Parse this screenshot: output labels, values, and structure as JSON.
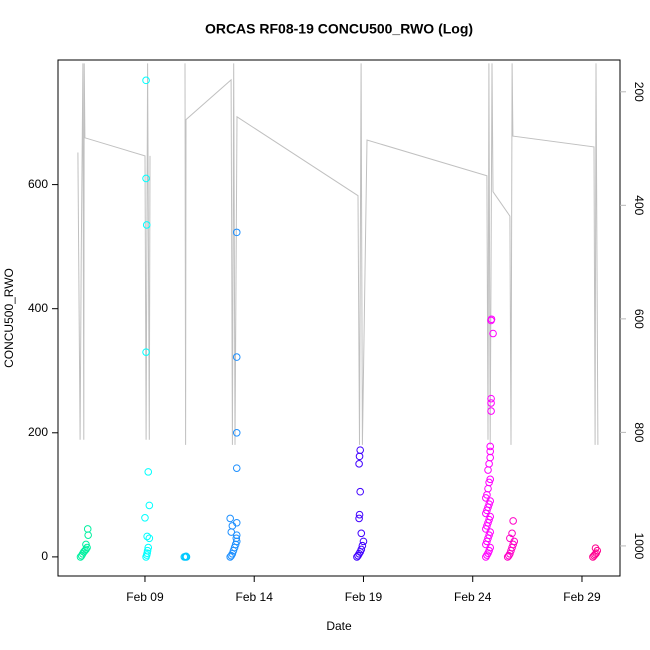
{
  "chart_data": {
    "type": "scatter",
    "title": "ORCAS RF08-19 CONCU500_RWO (Log)",
    "x_label": "Date",
    "y_label": "CONCU500_RWO",
    "xlim": [
      5.02,
      30.74
    ],
    "xticks": [
      {
        "value": 9,
        "label": "Feb 09"
      },
      {
        "value": 14,
        "label": "Feb 14"
      },
      {
        "value": 19,
        "label": "Feb 19"
      },
      {
        "value": 24,
        "label": "Feb 24"
      },
      {
        "value": 29,
        "label": "Feb 29"
      }
    ],
    "ylim": [
      -30.8,
      800.8
    ],
    "yticks": [
      0,
      200,
      400,
      600
    ],
    "y2lim": [
      1053,
      144
    ],
    "y2ticks": [
      200,
      400,
      600,
      800,
      1000
    ],
    "y2_color": "#b8b8b8",
    "series": [
      {
        "mode": "line",
        "axis": "y2",
        "color": "#c0c0c0",
        "x": [
          5.93,
          6.03,
          6.08,
          6.16,
          6.2,
          6.22,
          6.25,
          9.0,
          9.05,
          9.12,
          9.2,
          9.23,
          null,
          10.83,
          10.86,
          10.88,
          12.94,
          13.0,
          13.06,
          13.12,
          13.21,
          18.75,
          18.82,
          18.89,
          18.95,
          19.16,
          24.65,
          24.7,
          24.74,
          24.8,
          24.88,
          24.93,
          25.7,
          25.75,
          25.8,
          25.84,
          29.55,
          29.6,
          29.64,
          29.73
        ],
        "values": [
          307,
          813,
          500,
          150,
          813,
          150,
          281,
          313,
          813,
          150,
          813,
          313,
          null,
          150,
          822,
          249,
          179,
          822,
          150,
          822,
          244,
          383,
          822,
          150,
          822,
          285,
          348,
          813,
          150,
          822,
          150,
          376,
          419,
          822,
          150,
          278,
          297,
          822,
          150,
          822
        ]
      },
      {
        "mode": "points",
        "color": "#00f0a0",
        "x": [
          6.05,
          6.1,
          6.15,
          6.2,
          6.25,
          6.3,
          6.35,
          6.3,
          6.4,
          6.38
        ],
        "values": [
          0,
          2,
          5,
          8,
          10,
          12,
          15,
          20,
          35,
          45
        ]
      },
      {
        "mode": "points",
        "color": "#00ffff",
        "x": [
          9.05,
          9.08,
          9.1,
          9.12,
          9.15,
          9.2,
          9.1,
          9.0,
          9.2,
          9.15,
          9.05,
          9.08,
          9.05,
          9.05
        ],
        "values": [
          0,
          3,
          6,
          10,
          15,
          30,
          33,
          63,
          83,
          137,
          330,
          535,
          610,
          768
        ]
      },
      {
        "mode": "points",
        "color": "#00c8ff",
        "x": [
          10.8,
          10.85,
          10.88,
          10.9
        ],
        "values": [
          0,
          0,
          1,
          0
        ]
      },
      {
        "mode": "points",
        "color": "#1e90ff",
        "x": [
          12.9,
          12.95,
          13.0,
          13.05,
          13.1,
          13.15,
          13.2,
          13.18,
          13.2,
          12.95,
          13.0,
          13.2,
          12.9,
          13.2,
          13.2,
          13.2,
          13.2
        ],
        "values": [
          0,
          2,
          5,
          10,
          15,
          20,
          25,
          30,
          35,
          40,
          50,
          55,
          62,
          143,
          200,
          322,
          523
        ]
      },
      {
        "mode": "points",
        "color": "#4000ff",
        "x": [
          18.7,
          18.75,
          18.8,
          18.85,
          18.9,
          18.95,
          19.0,
          18.9,
          18.8,
          18.82,
          18.85,
          18.8,
          18.82,
          18.85
        ],
        "values": [
          0,
          2,
          5,
          8,
          12,
          18,
          25,
          38,
          62,
          68,
          105,
          150,
          162,
          172
        ]
      },
      {
        "mode": "points",
        "color": "#ff00ff",
        "x": [
          24.6,
          24.65,
          24.7,
          24.75,
          24.8,
          24.6,
          24.65,
          24.7,
          24.75,
          24.8,
          24.6,
          24.65,
          24.7,
          24.75,
          24.8,
          24.6,
          24.65,
          24.7,
          24.75,
          24.8,
          24.6,
          24.65,
          24.7,
          24.75,
          24.8,
          24.7,
          24.75,
          24.8,
          24.8,
          24.8,
          24.84,
          24.84,
          24.84,
          24.93,
          24.84,
          24.86
        ],
        "values": [
          0,
          3,
          6,
          10,
          15,
          20,
          25,
          30,
          35,
          40,
          45,
          50,
          55,
          60,
          65,
          70,
          75,
          80,
          85,
          90,
          95,
          100,
          110,
          120,
          125,
          140,
          150,
          160,
          170,
          178,
          235,
          248,
          255,
          360,
          381,
          383
        ]
      },
      {
        "mode": "points",
        "color": "#ff00c8",
        "x": [
          25.6,
          25.65,
          25.7,
          25.75,
          25.8,
          25.85,
          25.9,
          25.7,
          25.8,
          25.85
        ],
        "values": [
          0,
          2,
          5,
          10,
          15,
          20,
          25,
          30,
          38,
          58
        ]
      },
      {
        "mode": "points",
        "color": "#ff0090",
        "x": [
          29.5,
          29.55,
          29.6,
          29.65,
          29.7,
          29.62
        ],
        "values": [
          0,
          2,
          4,
          6,
          10,
          14
        ]
      }
    ]
  }
}
